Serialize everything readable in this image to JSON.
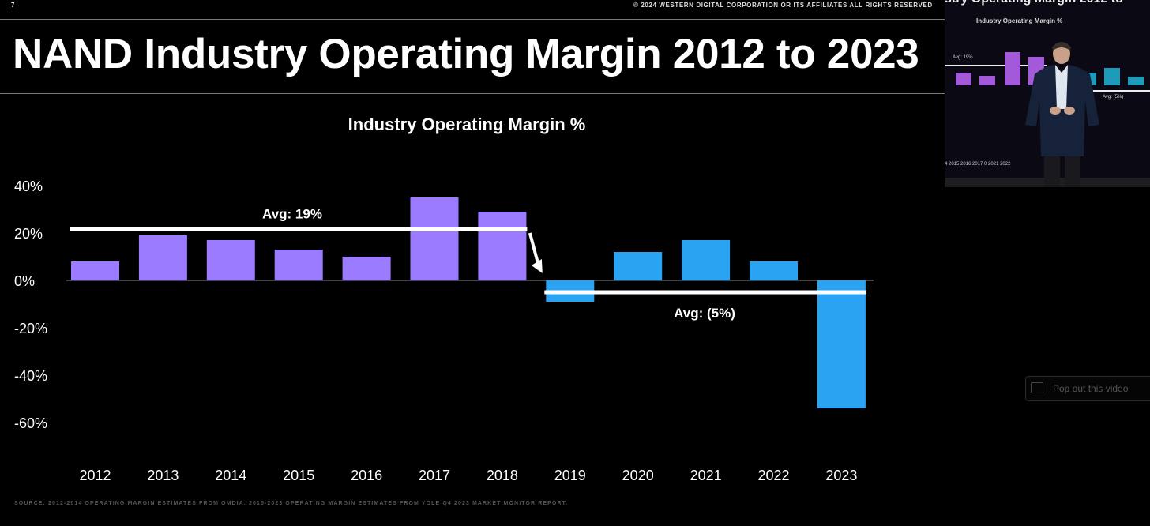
{
  "slide": {
    "number": "7",
    "copyright": "© 2024 WESTERN DIGITAL CORPORATION OR ITS AFFILIATES  ALL RIGHTS RESERVED",
    "title": "NAND Industry Operating Margin 2012 to 2023",
    "source": "SOURCE: 2012-2014 OPERATING MARGIN ESTIMATES FROM OMDIA. 2015-2023 OPERATING MARGIN ESTIMATES FROM YOLE Q4 2023 MARKET MONITOR REPORT."
  },
  "chart_data": {
    "type": "bar",
    "title": "Industry Operating Margin %",
    "xlabel": "",
    "ylabel": "",
    "categories": [
      "2012",
      "2013",
      "2014",
      "2015",
      "2016",
      "2017",
      "2018",
      "2019",
      "2020",
      "2021",
      "2022",
      "2023"
    ],
    "values": [
      8,
      19,
      17,
      13,
      10,
      35,
      29,
      -9,
      12,
      17,
      8,
      -54
    ],
    "ylim": [
      -60,
      40
    ],
    "yticks": [
      40,
      20,
      0,
      -20,
      -40,
      -60
    ],
    "ytick_labels": [
      "40%",
      "20%",
      "0%",
      "-20%",
      "-40%",
      "-60%"
    ],
    "bar_colors": [
      "#9b7bff",
      "#9b7bff",
      "#9b7bff",
      "#9b7bff",
      "#9b7bff",
      "#9b7bff",
      "#9b7bff",
      "#2aa3f2",
      "#2aa3f2",
      "#2aa3f2",
      "#2aa3f2",
      "#2aa3f2"
    ],
    "annotations": [
      {
        "label": "Avg: 19%",
        "value": 21.5,
        "from": "2012",
        "to": "2018",
        "label_position": "above"
      },
      {
        "label": "Avg: (5%)",
        "value": -5,
        "from": "2019",
        "to": "2023",
        "label_position": "below"
      }
    ],
    "arrow": {
      "from": "2018",
      "to": "2019",
      "direction": "down"
    },
    "grid": false,
    "legend": "none"
  },
  "video": {
    "title": "stry Operating Margin 2012 to",
    "subtitle": "Industry Operating Margin %",
    "avg_top": "Avg: 19%",
    "avg_bottom": "Avg: (5%)",
    "years": "4    2015    2016    2017                                    0    2021    2022"
  },
  "popout": {
    "label": "Pop out this video"
  }
}
